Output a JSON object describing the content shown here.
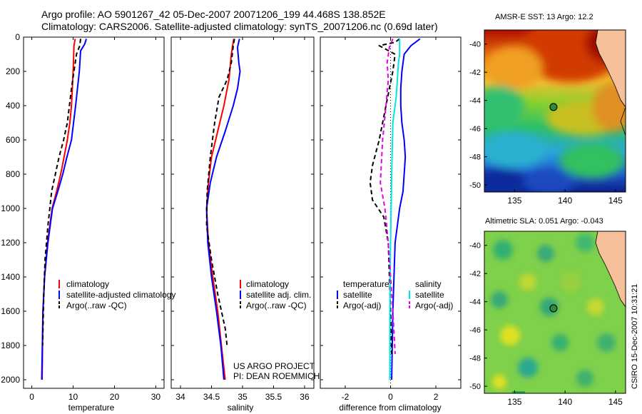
{
  "header": {
    "line1": "Argo profile: AO 5901267_42 05-Dec-2007 20071206_199 44.468S 138.852E",
    "line2": "Climatology: CARS2006. Satellite-adjusted climatology: synTS_20071206.nc (0.69d later)"
  },
  "credit": "CSIRO 15-Dec-2007 10:31:21",
  "project": {
    "line1": "US ARGO PROJECT",
    "line2": "PI: DEAN ROEMMICH"
  },
  "colors": {
    "climatology": "#ff0000",
    "satellite": "#0000ff",
    "argo": "#000000",
    "sal_satellite": "#00e6e6",
    "sal_argo": "#e600e6"
  },
  "chart_data": [
    {
      "type": "line",
      "xlabel": "temperature",
      "ylabel": "",
      "xlim": [
        -2,
        32
      ],
      "ylim": [
        2050,
        0
      ],
      "y_reversed": true,
      "xticks": [
        0,
        10,
        20,
        30
      ],
      "yticks": [
        0,
        200,
        400,
        600,
        800,
        1000,
        1200,
        1400,
        1600,
        1800,
        2000
      ],
      "legend": [
        "climatology",
        "satellite-adjusted climatology",
        "Argo(..raw -QC)"
      ],
      "series": [
        {
          "name": "climatology",
          "style": "solid",
          "color": "#ff0000",
          "x": [
            10.5,
            10.2,
            10.0,
            9.6,
            9.2,
            8.6,
            7.8,
            7.0,
            6.0,
            4.9,
            3.8,
            3.1,
            2.7,
            2.5
          ],
          "y": [
            10,
            50,
            200,
            400,
            500,
            600,
            700,
            800,
            900,
            1000,
            1200,
            1400,
            1600,
            2000
          ]
        },
        {
          "name": "satellite-adjusted climatology",
          "style": "solid",
          "color": "#0000ff",
          "x": [
            13.2,
            12.8,
            11.8,
            11.5,
            10.6,
            9.6,
            8.5,
            7.5,
            6.3,
            5.0,
            3.9,
            3.1,
            2.7,
            2.4
          ],
          "y": [
            10,
            40,
            80,
            200,
            400,
            600,
            700,
            800,
            900,
            1000,
            1200,
            1400,
            1600,
            2000
          ]
        },
        {
          "name": "Argo(..raw -QC)",
          "style": "dashed",
          "color": "#000000",
          "x": [
            11.8,
            11.6,
            10.8,
            10.2,
            9.6,
            8.6,
            7.7,
            6.6,
            5.7,
            4.8,
            3.9,
            3.2,
            2.9,
            2.6
          ],
          "y": [
            10,
            50,
            100,
            200,
            300,
            500,
            600,
            700,
            800,
            900,
            1100,
            1300,
            1500,
            1800
          ]
        }
      ]
    },
    {
      "type": "line",
      "xlabel": "salinity",
      "ylabel": "",
      "xlim": [
        33.85,
        36.15
      ],
      "ylim": [
        2050,
        0
      ],
      "y_reversed": true,
      "xticks": [
        34,
        34.5,
        35,
        35.5,
        36
      ],
      "legend": [
        "climatology",
        "satellite adj. clim.",
        "Argo(..raw -QC)"
      ],
      "series": [
        {
          "name": "climatology",
          "style": "solid",
          "color": "#ff0000",
          "x": [
            34.86,
            34.84,
            34.82,
            34.78,
            34.7,
            34.6,
            34.5,
            34.45,
            34.42,
            34.45,
            34.52,
            34.6,
            34.66,
            34.72
          ],
          "y": [
            10,
            50,
            100,
            250,
            400,
            550,
            700,
            850,
            1000,
            1200,
            1400,
            1600,
            1800,
            2000
          ]
        },
        {
          "name": "satellite adj. clim.",
          "style": "solid",
          "color": "#0000ff",
          "x": [
            34.95,
            34.92,
            34.94,
            34.96,
            34.92,
            34.85,
            34.72,
            34.58,
            34.48,
            34.42,
            34.44,
            34.5,
            34.58,
            34.65,
            34.7
          ],
          "y": [
            10,
            60,
            150,
            200,
            300,
            400,
            550,
            700,
            850,
            1000,
            1200,
            1400,
            1600,
            1800,
            2000
          ]
        },
        {
          "name": "Argo(..raw -QC)",
          "style": "dashed",
          "color": "#000000",
          "x": [
            34.87,
            34.85,
            34.82,
            34.75,
            34.62,
            34.55,
            34.48,
            34.43,
            34.42,
            34.5,
            34.6,
            34.72,
            34.75
          ],
          "y": [
            10,
            50,
            150,
            250,
            350,
            500,
            700,
            900,
            1100,
            1300,
            1500,
            1700,
            1800
          ]
        }
      ]
    },
    {
      "type": "line",
      "xlabel": "difference from climatology",
      "ylabel": "",
      "xlim": [
        -3.1,
        3.1
      ],
      "ylim": [
        2050,
        0
      ],
      "y_reversed": true,
      "xticks": [
        -2,
        0,
        2
      ],
      "legend": [
        "temperature",
        "satellite",
        "Argo(-adj)",
        "salinity",
        "satellite",
        "Argo(-adj)"
      ],
      "series": [
        {
          "name": "temperature satellite",
          "style": "solid",
          "color": "#0000ff",
          "x": [
            1.3,
            0.9,
            0.6,
            0.5,
            0.45,
            0.45,
            0.5,
            0.6,
            0.65,
            0.6,
            0.55,
            0.4,
            0.2,
            0.1,
            0.05
          ],
          "y": [
            10,
            50,
            100,
            200,
            300,
            400,
            500,
            600,
            700,
            800,
            900,
            1000,
            1200,
            1600,
            2000
          ]
        },
        {
          "name": "temperature Argo(-adj)",
          "style": "dashed",
          "color": "#000000",
          "x": [
            0.4,
            0.2,
            -0.5,
            0.2,
            0.1,
            -0.2,
            -0.5,
            -0.8,
            -0.9,
            -0.8,
            -0.3,
            -0.1,
            -0.05,
            0.0,
            0.05
          ],
          "y": [
            10,
            30,
            50,
            100,
            200,
            400,
            600,
            750,
            850,
            950,
            1050,
            1200,
            1400,
            1600,
            1850
          ]
        },
        {
          "name": "salinity satellite",
          "style": "solid",
          "color": "#00e6e6",
          "x": [
            0.4,
            0.4,
            0.35,
            0.3,
            0.25,
            0.2,
            0.1,
            0.05,
            0.0,
            -0.03,
            -0.03
          ],
          "y": [
            10,
            100,
            150,
            250,
            350,
            400,
            500,
            800,
            1200,
            1600,
            2000
          ]
        },
        {
          "name": "salinity Argo(-adj)",
          "style": "dashed",
          "color": "#e600e6",
          "x": [
            0.1,
            -0.05,
            -0.15,
            -0.1,
            -0.2,
            -0.35,
            -0.45,
            -0.25,
            -0.1,
            0.0,
            0.1,
            0.2
          ],
          "y": [
            10,
            60,
            150,
            250,
            400,
            600,
            850,
            1000,
            1200,
            1400,
            1600,
            1850
          ]
        }
      ]
    }
  ],
  "maps": [
    {
      "title": "AMSR-E SST: 13 Argo: 12.2",
      "xlim": [
        132,
        146
      ],
      "ylim": [
        -50.5,
        -39
      ],
      "xticks": [
        135,
        140,
        145
      ],
      "yticks": [
        -40,
        -42,
        -44,
        -46,
        -48,
        -50
      ],
      "marker": {
        "lon": 138.852,
        "lat": -44.468
      }
    },
    {
      "title": "Altimetric SLA: 0.051 Argo: -0.043",
      "xlim": [
        132,
        146
      ],
      "ylim": [
        -50.5,
        -39
      ],
      "xticks": [
        135,
        140,
        145
      ],
      "yticks": [
        -40,
        -42,
        -44,
        -46,
        -48,
        -50
      ],
      "marker": {
        "lon": 138.852,
        "lat": -44.468
      }
    }
  ]
}
